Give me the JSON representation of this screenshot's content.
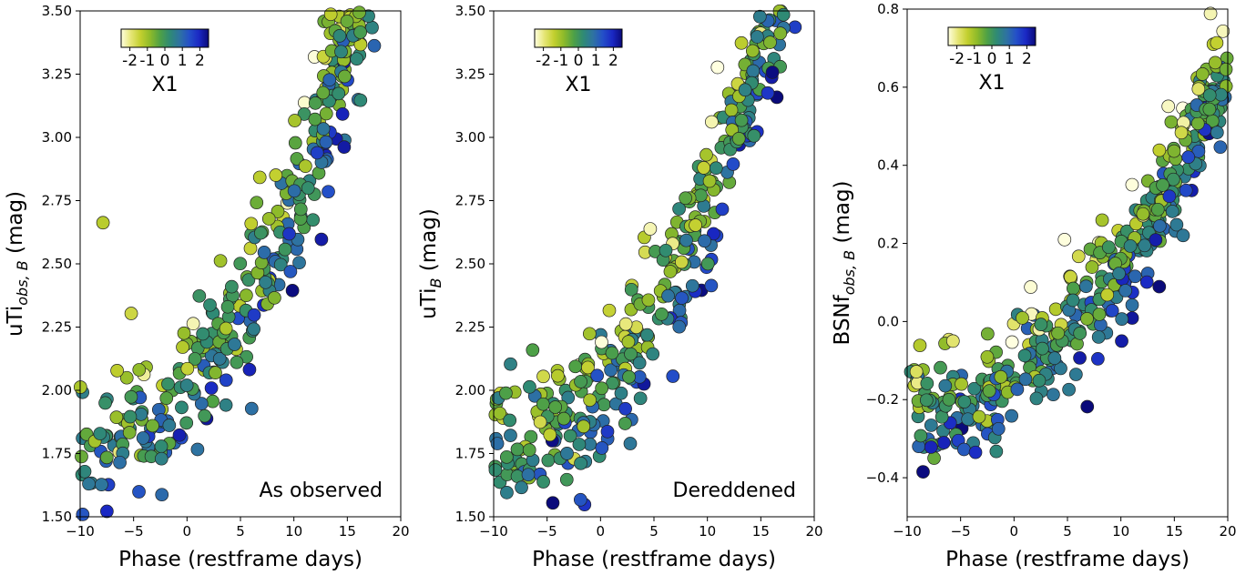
{
  "chart_data": [
    {
      "type": "scatter",
      "annotation": "As observed",
      "xlabel": "Phase (restframe days)",
      "ylabel_main": "uTi",
      "ylabel_sub": "obs, B",
      "ylabel_unit": " (mag)",
      "xlim": [
        -10,
        20
      ],
      "ylim": [
        1.5,
        3.5
      ],
      "xticks": [
        -10,
        -5,
        0,
        5,
        10,
        15,
        20
      ],
      "yticks": [
        1.5,
        1.75,
        2.0,
        2.25,
        2.5,
        2.75,
        3.0,
        3.25,
        3.5
      ],
      "ytick_labels": [
        "1.50",
        "1.75",
        "2.00",
        "2.25",
        "2.50",
        "2.75",
        "3.00",
        "3.25",
        "3.50"
      ],
      "trend": {
        "base": 1.93,
        "quad": 0.0028,
        "lin": 0.02,
        "x1_coef": -0.1,
        "spread": 0.12,
        "outlier_shift": 0.55
      },
      "colorbar": {
        "label": "X1",
        "ticks": [
          -2,
          -1,
          0,
          1,
          2
        ],
        "range": [
          -2.5,
          2.5
        ]
      }
    },
    {
      "type": "scatter",
      "annotation": "Dereddened",
      "xlabel": "Phase (restframe days)",
      "ylabel_main": "uTi",
      "ylabel_sub": "B",
      "ylabel_unit": " (mag)",
      "xlim": [
        -10,
        20
      ],
      "ylim": [
        1.5,
        3.5
      ],
      "xticks": [
        -10,
        -5,
        0,
        5,
        10,
        15,
        20
      ],
      "yticks": [
        1.5,
        1.75,
        2.0,
        2.25,
        2.5,
        2.75,
        3.0,
        3.25,
        3.5
      ],
      "ytick_labels": [
        "1.50",
        "1.75",
        "2.00",
        "2.25",
        "2.50",
        "2.75",
        "3.00",
        "3.25",
        "3.50"
      ],
      "trend": {
        "base": 1.92,
        "quad": 0.0028,
        "lin": 0.02,
        "x1_coef": -0.1,
        "spread": 0.11,
        "outlier_shift": 0.55
      },
      "colorbar": {
        "label": "X1",
        "ticks": [
          -2,
          -1,
          0,
          1,
          2
        ],
        "range": [
          -2.5,
          2.5
        ]
      }
    },
    {
      "type": "scatter",
      "annotation": "",
      "xlabel": "Phase (restframe days)",
      "ylabel_main": "BSNf",
      "ylabel_sub": "obs, B",
      "ylabel_unit": " (mag)",
      "xlim": [
        -10,
        20
      ],
      "ylim": [
        -0.5,
        0.8
      ],
      "xticks": [
        -10,
        -5,
        0,
        5,
        10,
        15,
        20
      ],
      "yticks": [
        -0.4,
        -0.2,
        0.0,
        0.2,
        0.4,
        0.6,
        0.8
      ],
      "ytick_labels": [
        "−0.4",
        "−0.2",
        "0.0",
        "0.2",
        "0.4",
        "0.6",
        "0.8"
      ],
      "trend": {
        "base": -0.17,
        "quad": 0.0011,
        "lin": 0.007,
        "x1_coef": -0.05,
        "spread": 0.06,
        "outlier_shift": 0.25
      },
      "colorbar": {
        "label": "X1",
        "ticks": [
          -2,
          -1,
          0,
          1,
          2
        ],
        "range": [
          -2.5,
          2.5
        ]
      }
    }
  ],
  "colormap": [
    "#ffffe0",
    "#e6e676",
    "#c2cf2e",
    "#8dba2a",
    "#4fa145",
    "#2f8a74",
    "#2e73a1",
    "#2450c8",
    "#1a28c4",
    "#0a0a7a"
  ],
  "marker_edge": "#222222",
  "point_count": 420
}
